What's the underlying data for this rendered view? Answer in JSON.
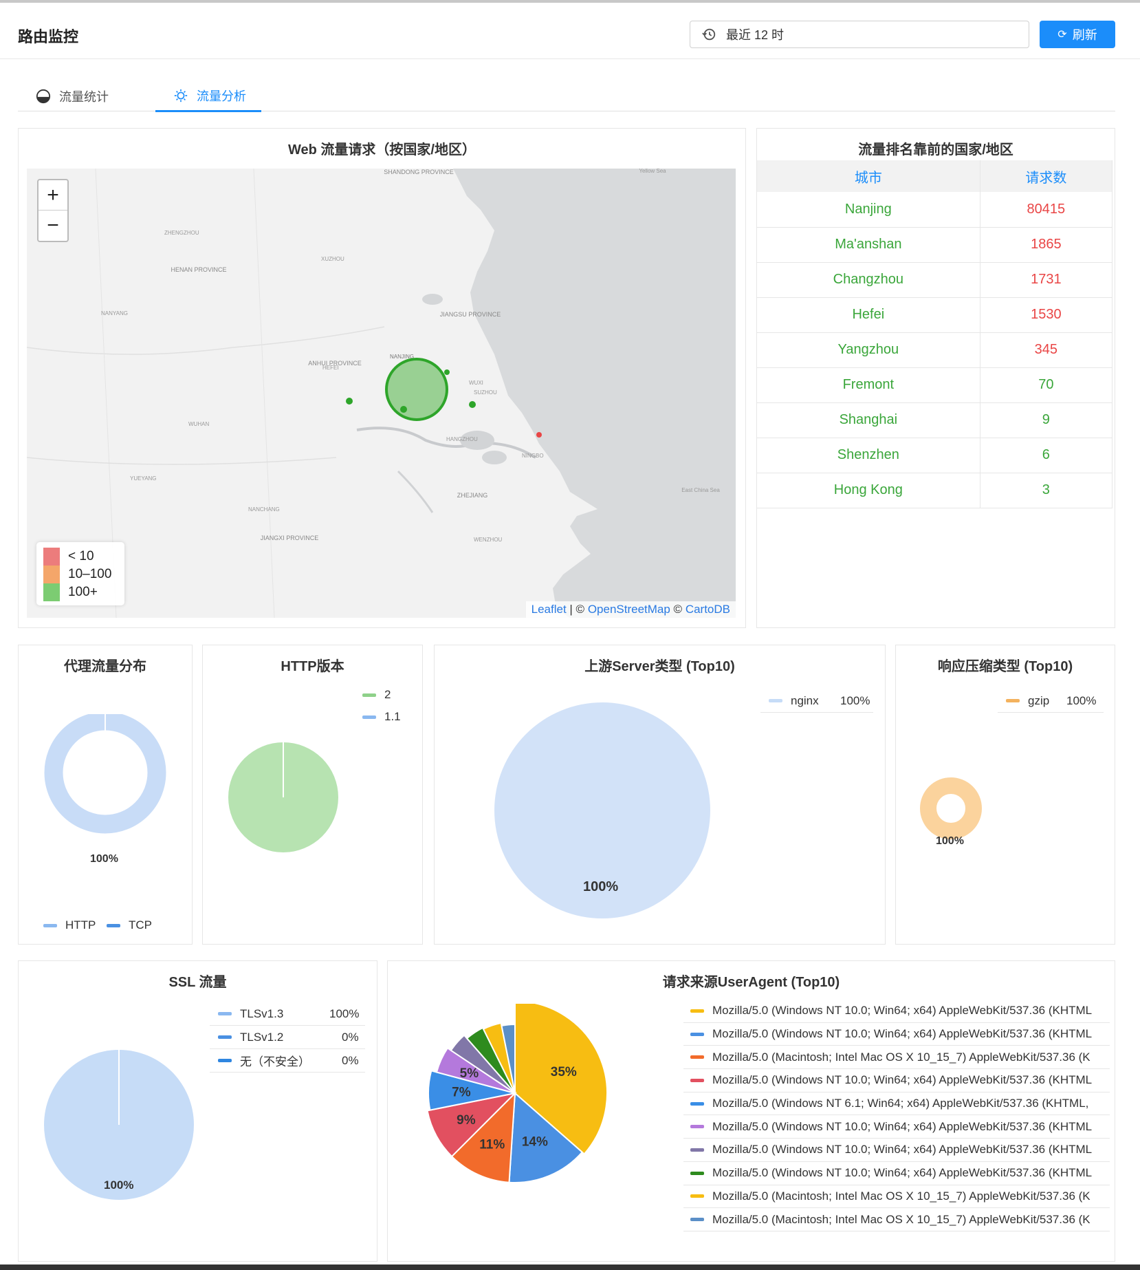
{
  "header": {
    "title": "路由监控",
    "time_range": "最近 12 时",
    "refresh_label": "刷新"
  },
  "tabs": [
    {
      "label": "流量统计",
      "icon": "gauge-icon",
      "active": false
    },
    {
      "label": "流量分析",
      "icon": "lightbulb-icon",
      "active": true
    }
  ],
  "map_panel": {
    "title": "Web 流量请求（按国家/地区）",
    "zoom_in": "+",
    "zoom_out": "−",
    "legend": [
      {
        "label": "< 10",
        "color": "#ec7c7c"
      },
      {
        "label": "10–100",
        "color": "#f4a66a"
      },
      {
        "label": "100+",
        "color": "#7ccc72"
      }
    ],
    "attribution": {
      "leaflet": "Leaflet",
      "sep1": " | © ",
      "osm": "OpenStreetMap",
      "sep2": " © ",
      "carto": "CartoDB"
    },
    "place_labels": {
      "shandong": "SHANDONG PROVINCE",
      "henan": "HENAN PROVINCE",
      "anhui": "ANHUI PROVINCE",
      "jiangsu": "JIANGSU PROVINCE",
      "zhejiang": "ZHEJIANG",
      "jiangxi": "JIANGXI PROVINCE",
      "zhengzhou": "ZHENGZHOU",
      "xuzhou": "XUZHOU",
      "nanjing": "NANJING",
      "hefei": "HEFEI",
      "wuhan": "WUHAN",
      "hangzhou": "HANGZHOU",
      "suzhou": "SUZHOU",
      "wuxi": "WUXI",
      "ningbo": "NINGBO",
      "wenzhou": "WENZHOU",
      "nanchang": "NANCHANG",
      "yueyang": "YUEYANG",
      "nanyang": "NANYANG",
      "east_china_sea": "East China Sea",
      "yellow_sea": "Yellow Sea"
    }
  },
  "ranking": {
    "title": "流量排名靠前的国家/地区",
    "col_city": "城市",
    "col_count": "请求数",
    "rows": [
      {
        "city": "Nanjing",
        "count": "80415",
        "color": "red"
      },
      {
        "city": "Ma'anshan",
        "count": "1865",
        "color": "red"
      },
      {
        "city": "Changzhou",
        "count": "1731",
        "color": "red"
      },
      {
        "city": "Hefei",
        "count": "1530",
        "color": "red"
      },
      {
        "city": "Yangzhou",
        "count": "345",
        "color": "red"
      },
      {
        "city": "Fremont",
        "count": "70",
        "color": "green"
      },
      {
        "city": "Shanghai",
        "count": "9",
        "color": "green"
      },
      {
        "city": "Shenzhen",
        "count": "6",
        "color": "green"
      },
      {
        "city": "Hong Kong",
        "count": "3",
        "color": "green"
      }
    ]
  },
  "proxy": {
    "title": "代理流量分布",
    "pct": "100%",
    "legend": [
      {
        "label": "HTTP",
        "color": "#8ab8f0"
      },
      {
        "label": "TCP",
        "color": "#4a90e2"
      }
    ]
  },
  "http_version": {
    "title": "HTTP版本",
    "legend": [
      {
        "label": "2",
        "color": "#8fd18a"
      },
      {
        "label": "1.1",
        "color": "#8ab8f0"
      }
    ]
  },
  "upstream": {
    "title": "上游Server类型 (Top10)",
    "legend": [
      {
        "label": "nginx",
        "value": "100%",
        "color": "#c6dcf7"
      }
    ],
    "pct": "100%"
  },
  "compression": {
    "title": "响应压缩类型 (Top10)",
    "legend": [
      {
        "label": "gzip",
        "value": "100%",
        "color": "#f4b25e"
      }
    ],
    "pct": "100%"
  },
  "ssl": {
    "title": "SSL 流量",
    "legend": [
      {
        "label": "TLSv1.3",
        "value": "100%",
        "color": "#8ab8f0"
      },
      {
        "label": "TLSv1.2",
        "value": "0%",
        "color": "#4a90e2"
      },
      {
        "label": "无（不安全）",
        "value": "0%",
        "color": "#2f86e0"
      }
    ],
    "pct": "100%"
  },
  "useragent": {
    "title": "请求来源UserAgent (Top10)",
    "slice_labels": [
      "35%",
      "14%",
      "11%",
      "9%",
      "7%",
      "5%"
    ],
    "legend": [
      {
        "label": "Mozilla/5.0 (Windows NT 10.0; Win64; x64) AppleWebKit/537.36 (KHTML",
        "color": "#f7bd12"
      },
      {
        "label": "Mozilla/5.0 (Windows NT 10.0; Win64; x64) AppleWebKit/537.36 (KHTML",
        "color": "#4a90e2"
      },
      {
        "label": "Mozilla/5.0 (Macintosh; Intel Mac OS X 10_15_7) AppleWebKit/537.36 (K",
        "color": "#f26b2b"
      },
      {
        "label": "Mozilla/5.0 (Windows NT 10.0; Win64; x64) AppleWebKit/537.36 (KHTML",
        "color": "#e25060"
      },
      {
        "label": "Mozilla/5.0 (Windows NT 6.1; Win64; x64) AppleWebKit/537.36 (KHTML,",
        "color": "#3a8ee6"
      },
      {
        "label": "Mozilla/5.0 (Windows NT 10.0; Win64; x64) AppleWebKit/537.36 (KHTML",
        "color": "#b479dc"
      },
      {
        "label": "Mozilla/5.0 (Windows NT 10.0; Win64; x64) AppleWebKit/537.36 (KHTML",
        "color": "#8177a8"
      },
      {
        "label": "Mozilla/5.0 (Windows NT 10.0; Win64; x64) AppleWebKit/537.36 (KHTML",
        "color": "#2e8b1e"
      },
      {
        "label": "Mozilla/5.0 (Macintosh; Intel Mac OS X 10_15_7) AppleWebKit/537.36 (K",
        "color": "#f7bd12"
      },
      {
        "label": "Mozilla/5.0 (Macintosh; Intel Mac OS X 10_15_7) AppleWebKit/537.36 (K",
        "color": "#5b8fc7"
      }
    ]
  },
  "chart_data": [
    {
      "type": "pie",
      "title": "代理流量分布",
      "categories": [
        "HTTP",
        "TCP"
      ],
      "values": [
        100,
        0
      ]
    },
    {
      "type": "pie",
      "title": "HTTP版本",
      "categories": [
        "2",
        "1.1"
      ],
      "values": [
        100,
        0
      ]
    },
    {
      "type": "pie",
      "title": "上游Server类型 (Top10)",
      "categories": [
        "nginx"
      ],
      "values": [
        100
      ]
    },
    {
      "type": "pie",
      "title": "响应压缩类型 (Top10)",
      "categories": [
        "gzip"
      ],
      "values": [
        100
      ]
    },
    {
      "type": "pie",
      "title": "SSL 流量",
      "categories": [
        "TLSv1.3",
        "TLSv1.2",
        "无（不安全）"
      ],
      "values": [
        100,
        0,
        0
      ]
    },
    {
      "type": "pie",
      "title": "请求来源UserAgent (Top10)",
      "values": [
        35,
        14,
        11,
        9,
        7,
        5,
        4,
        4,
        4,
        3
      ]
    }
  ]
}
